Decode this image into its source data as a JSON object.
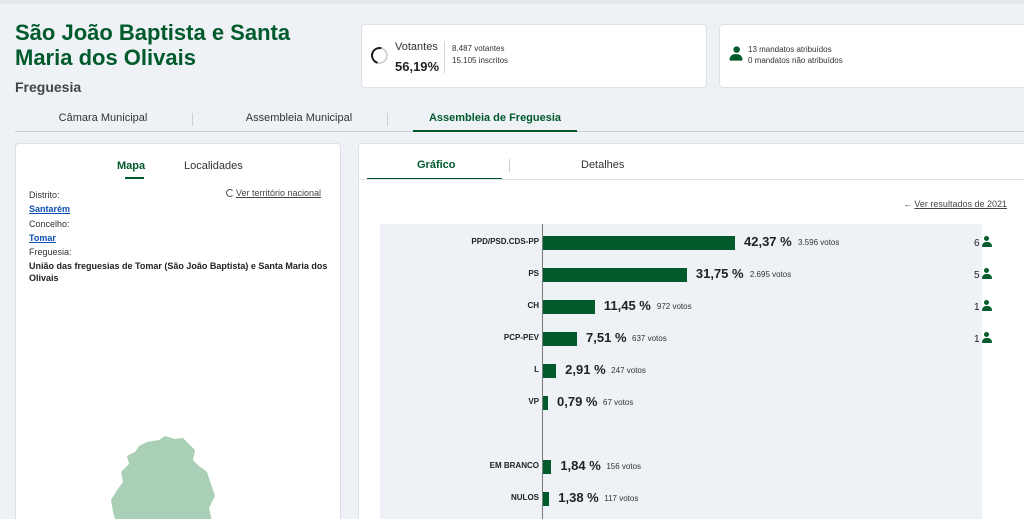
{
  "header": {
    "title": "São João Baptista e Santa Maria dos Olivais",
    "subtitle": "Freguesia"
  },
  "voters": {
    "label": "Votantes",
    "percent": "56,19%",
    "percent_value": 56.19,
    "voters_count": "8.487 votantes",
    "registered": "15.105 inscritos"
  },
  "mandates": {
    "assigned": "13 mandatos atribuídos",
    "unassigned": "0 mandatos não atribuídos",
    "icon": "person-icon"
  },
  "main_tabs": [
    {
      "label": "Câmara Municipal",
      "active": false
    },
    {
      "label": "Assembleia Municipal",
      "active": false
    },
    {
      "label": "Assembleia de Freguesia",
      "active": true
    }
  ],
  "left_panel": {
    "tabs": [
      {
        "label": "Mapa",
        "active": true
      },
      {
        "label": "Localidades",
        "active": false
      }
    ],
    "national_link": "Ver território nacional",
    "district_label": "Distrito:",
    "district_value": "Santarém",
    "municipality_label": "Concelho:",
    "municipality_value": "Tomar",
    "parish_label": "Freguesia:",
    "parish_value": "União das freguesias de Tomar (São João Baptista) e Santa Maria dos Olivais",
    "map_color": "#a9cfb6"
  },
  "right_panel": {
    "tabs": [
      {
        "label": "Gráfico",
        "active": true
      },
      {
        "label": "Detalhes",
        "active": false
      }
    ],
    "back_link": "Ver resultados de 2021"
  },
  "colors": {
    "brand_green": "#005a2b",
    "link_blue": "#1050b0",
    "background": "#eef1f6"
  },
  "chart_data": {
    "type": "bar",
    "orientation": "horizontal",
    "categories": [
      "PPD/PSD.CDS-PP",
      "PS",
      "CH",
      "PCP-PEV",
      "L",
      "VP",
      "EM BRANCO",
      "NULOS"
    ],
    "values": [
      42.37,
      31.75,
      11.45,
      7.51,
      2.91,
      0.79,
      1.84,
      1.38
    ],
    "rows": [
      {
        "party": "PPD/PSD.CDS-PP",
        "value": 42.37,
        "pct": "42,37 %",
        "votes": "3.596 votos",
        "seats": "6"
      },
      {
        "party": "PS",
        "value": 31.75,
        "pct": "31,75 %",
        "votes": "2.695 votos",
        "seats": "5"
      },
      {
        "party": "CH",
        "value": 11.45,
        "pct": "11,45 %",
        "votes": "972 votos",
        "seats": "1"
      },
      {
        "party": "PCP-PEV",
        "value": 7.51,
        "pct": "7,51 %",
        "votes": "637 votos",
        "seats": "1"
      },
      {
        "party": "L",
        "value": 2.91,
        "pct": "2,91 %",
        "votes": "247 votos",
        "seats": ""
      },
      {
        "party": "VP",
        "value": 0.79,
        "pct": "0,79 %",
        "votes": "67 votos",
        "seats": ""
      },
      {
        "party": "EM BRANCO",
        "value": 1.84,
        "pct": "1,84 %",
        "votes": "156 votos",
        "seats": ""
      },
      {
        "party": "NULOS",
        "value": 1.38,
        "pct": "1,38 %",
        "votes": "117 votos",
        "seats": ""
      }
    ],
    "xlim": [
      0,
      100
    ],
    "bar_color": "#005a2b",
    "grid": false
  }
}
